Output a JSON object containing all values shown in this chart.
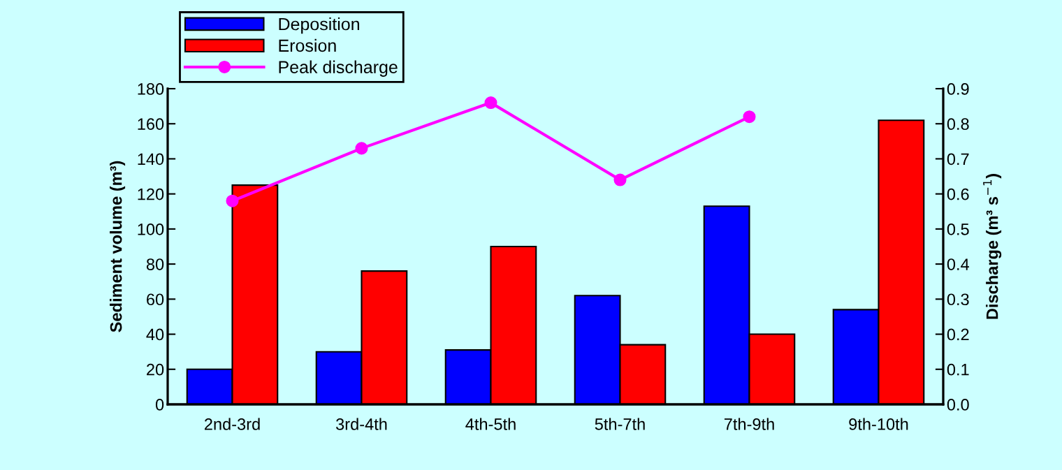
{
  "chart_data": {
    "type": "bar",
    "categories": [
      "2nd-3rd",
      "3rd-4th",
      "4th-5th",
      "5th-7th",
      "7th-9th",
      "9th-10th"
    ],
    "ylabel": "Sediment volume (m³)",
    "y2label": "Discharge (m³ s$^{−1}$)",
    "series": [
      {
        "name": "Deposition",
        "color": "#0000ff",
        "values": [
          20,
          30,
          31,
          62,
          113,
          54
        ]
      },
      {
        "name": "Erosion",
        "color": "#ff0000",
        "values": [
          125,
          76,
          90,
          34,
          40,
          162
        ]
      },
      {
        "name": "Peak discharge",
        "type": "line",
        "axis": "y2",
        "color": "#ff00ff",
        "marker": "circle",
        "values": [
          0.58,
          0.73,
          0.86,
          0.64,
          0.82,
          null
        ]
      }
    ],
    "ylim": [
      0,
      180
    ],
    "yticks": [
      0,
      20,
      40,
      60,
      80,
      100,
      120,
      140,
      160,
      180
    ],
    "y2lim": [
      0,
      0.9
    ],
    "y2ticks": [
      {
        "value": 0,
        "label": "0.0"
      },
      0.1,
      0.2,
      0.3,
      0.4,
      0.5,
      0.6,
      0.7,
      0.8,
      0.9
    ],
    "grid": false,
    "legend": "top left"
  }
}
